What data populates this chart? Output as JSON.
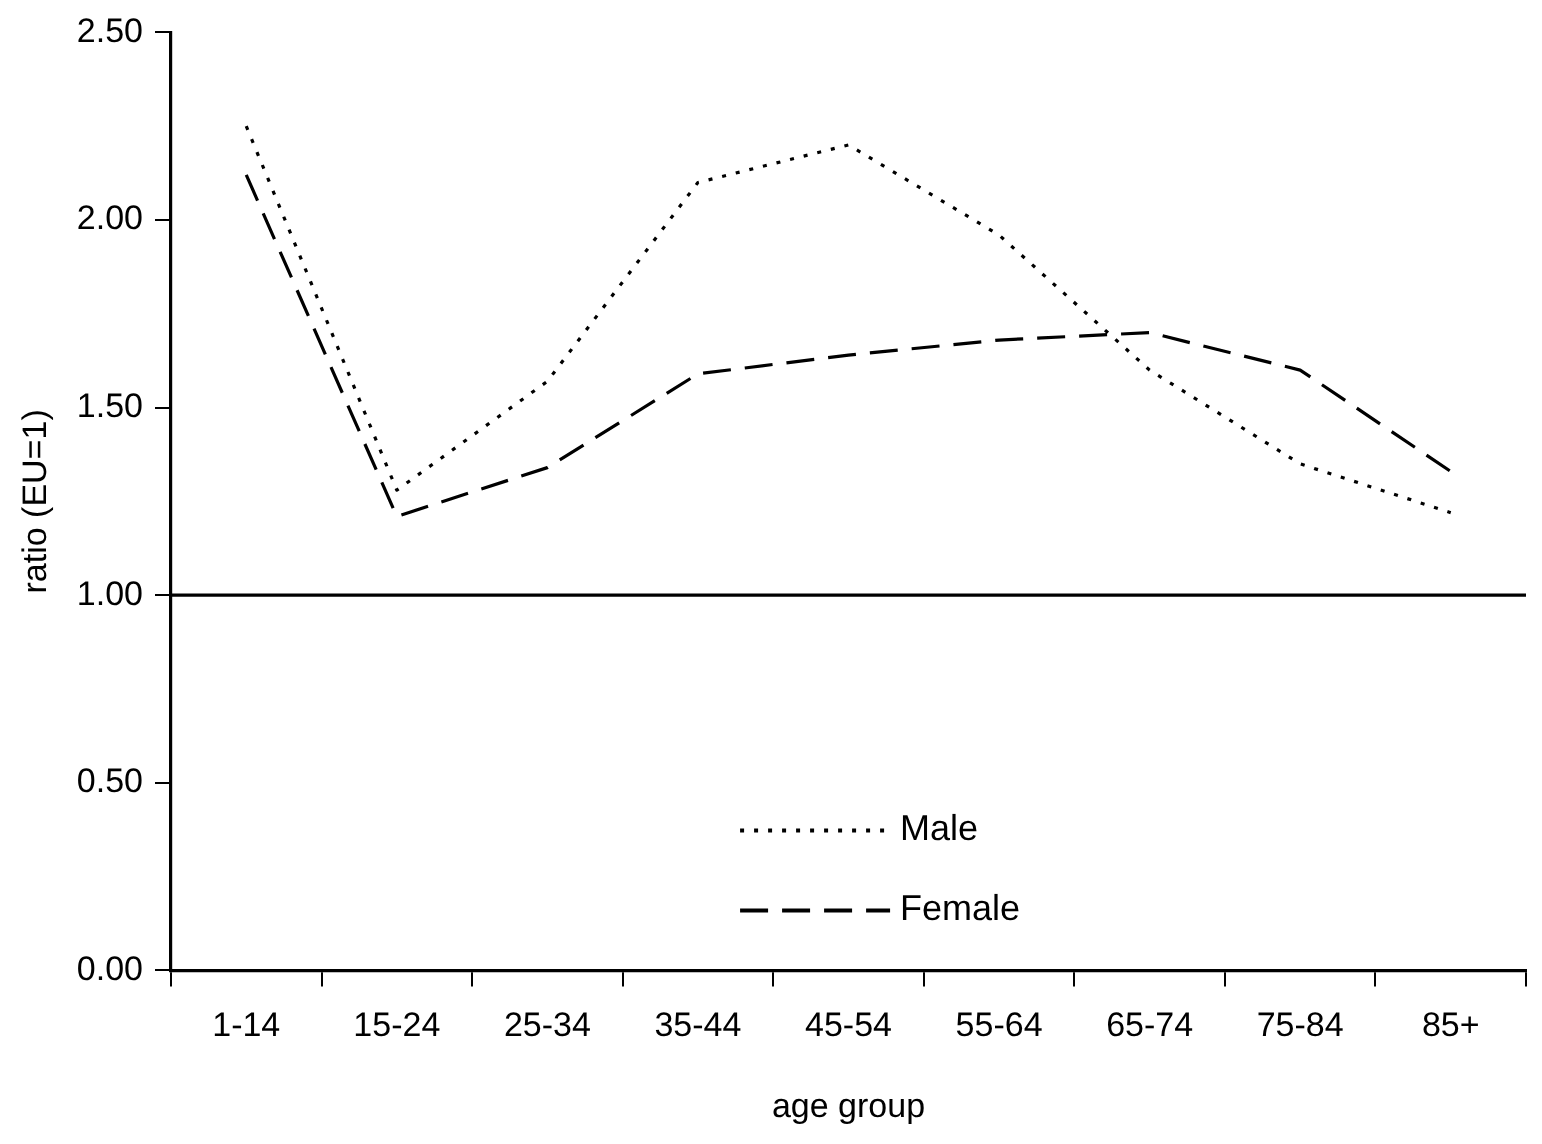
{
  "chart_data": {
    "type": "line",
    "xlabel": "age group",
    "ylabel": "ratio (EU=1)",
    "categories": [
      "1-14",
      "15-24",
      "25-34",
      "35-44",
      "45-54",
      "55-64",
      "65-74",
      "75-84",
      "85+"
    ],
    "series": [
      {
        "name": "Male",
        "color": "#000000",
        "line_style": "dotted",
        "values": [
          2.25,
          1.28,
          1.57,
          2.1,
          2.2,
          1.96,
          1.6,
          1.35,
          1.22
        ]
      },
      {
        "name": "Female",
        "color": "#000000",
        "line_style": "dashed",
        "values": [
          2.12,
          1.21,
          1.34,
          1.59,
          1.64,
          1.68,
          1.7,
          1.6,
          1.33
        ]
      }
    ],
    "ylim": [
      0,
      2.5
    ],
    "yticks": [
      {
        "value": 0,
        "label": "0.00"
      },
      {
        "value": 0.5,
        "label": "0.50"
      },
      {
        "value": 1,
        "label": "1.00"
      },
      {
        "value": 1.5,
        "label": "1.50"
      },
      {
        "value": 2,
        "label": "2.00"
      },
      {
        "value": 2.5,
        "label": "2.50"
      }
    ],
    "ref_lines": [
      {
        "axis": "y",
        "value": 1,
        "color": "#000000",
        "line_style": "solid"
      }
    ],
    "grid": false,
    "legend": "bottom",
    "marker": "none"
  }
}
